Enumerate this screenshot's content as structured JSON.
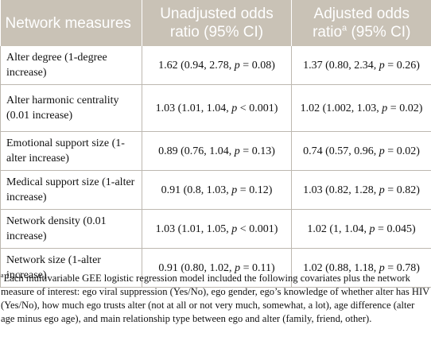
{
  "table": {
    "headers": {
      "col1": "Network measures",
      "col2": "Unadjusted odds ratio (95% CI)",
      "col3_pre": "Adjusted odds ratio",
      "col3_sup": "a",
      "col3_post": " (95% CI)"
    },
    "rows": [
      {
        "measure": "Alter degree (1-degree increase)",
        "unadj": {
          "pre": "1.62 (0.94, 2.78, ",
          "p": "p",
          "post": " = 0.08)"
        },
        "adj": {
          "pre": "1.37 (0.80, 2.34, ",
          "p": "p",
          "post": " = 0.26)"
        }
      },
      {
        "measure": "Alter harmonic centrality (0.01 increase)",
        "unadj": {
          "pre": "1.03 (1.01, 1.04, ",
          "p": "p",
          "post": " < 0.001)"
        },
        "adj": {
          "pre": "1.02 (1.002, 1.03, ",
          "p": "p",
          "post": " = 0.02)"
        }
      },
      {
        "measure": "Emotional support size (1-alter increase)",
        "unadj": {
          "pre": "0.89 (0.76, 1.04, ",
          "p": "p",
          "post": " = 0.13)"
        },
        "adj": {
          "pre": "0.74 (0.57, 0.96, ",
          "p": "p",
          "post": " = 0.02)"
        }
      },
      {
        "measure": "Medical support size (1-alter increase)",
        "unadj": {
          "pre": "0.91 (0.8, 1.03, ",
          "p": "p",
          "post": " = 0.12)"
        },
        "adj": {
          "pre": "1.03 (0.82, 1.28, ",
          "p": "p",
          "post": " = 0.82)"
        }
      },
      {
        "measure": "Network density (0.01 increase)",
        "unadj": {
          "pre": "1.03 (1.01, 1.05, ",
          "p": "p",
          "post": " < 0.001)"
        },
        "adj": {
          "pre": "1.02 (1, 1.04, ",
          "p": "p",
          "post": " = 0.045)"
        }
      },
      {
        "measure": "Network size (1-alter increase)",
        "unadj": {
          "pre": "0.91 (0.80, 1.02, ",
          "p": "p",
          "post": " = 0.11)"
        },
        "adj": {
          "pre": "1.02 (0.88, 1.18, ",
          "p": "p",
          "post": " = 0.78)"
        }
      }
    ]
  },
  "footnote": {
    "marker": "a",
    "text": "Each multivariable GEE logistic regression model included the following covariates plus the network measure of interest: ego viral suppression (Yes/No), ego gender, ego’s knowledge of whether alter has HIV (Yes/No), how much ego trusts alter (not at all or not very much, somewhat, a lot), age difference (alter age minus ego age), and main relationship type between ego and alter (family, friend, other)."
  }
}
